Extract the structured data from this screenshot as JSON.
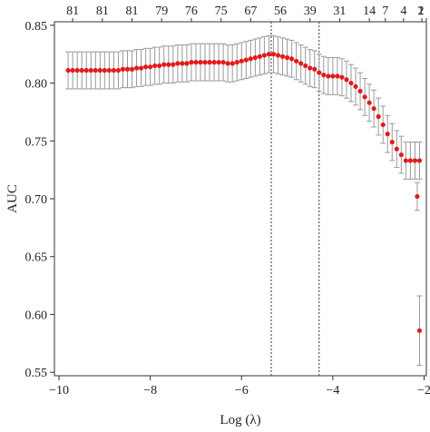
{
  "chart_data": {
    "type": "scatter",
    "xlabel": "Log (λ)",
    "ylabel": "AUC",
    "xlim": [
      -10.1,
      -1.95
    ],
    "ylim": [
      0.547,
      0.853
    ],
    "x_ticks": [
      -10,
      -8,
      -6,
      -4,
      -2
    ],
    "x_tick_labels": [
      "−10",
      "−8",
      "−6",
      "−4",
      "−2"
    ],
    "y_ticks": [
      0.55,
      0.6,
      0.65,
      0.7,
      0.75,
      0.8,
      0.85
    ],
    "y_tick_labels": [
      "0.55",
      "0.60",
      "0.65",
      "0.70",
      "0.75",
      "0.80",
      "0.85"
    ],
    "top_axis": [
      {
        "x": -9.7,
        "label": "81"
      },
      {
        "x": -9.05,
        "label": "81"
      },
      {
        "x": -8.4,
        "label": "81"
      },
      {
        "x": -7.75,
        "label": "79"
      },
      {
        "x": -7.1,
        "label": "76"
      },
      {
        "x": -6.45,
        "label": "75"
      },
      {
        "x": -5.8,
        "label": "67"
      },
      {
        "x": -5.15,
        "label": "56"
      },
      {
        "x": -4.5,
        "label": "39"
      },
      {
        "x": -3.85,
        "label": "31"
      },
      {
        "x": -3.2,
        "label": "14"
      },
      {
        "x": -2.85,
        "label": "7"
      },
      {
        "x": -2.45,
        "label": "4"
      },
      {
        "x": -2.05,
        "label": "2"
      },
      {
        "x": -1.95,
        "label": "1"
      }
    ],
    "vlines": [
      -5.35,
      -4.3
    ],
    "series": [
      {
        "x": [
          -9.8,
          -9.7,
          -9.6,
          -9.5,
          -9.4,
          -9.3,
          -9.2,
          -9.1,
          -9.0,
          -8.9,
          -8.8,
          -8.7,
          -8.6,
          -8.5,
          -8.4,
          -8.3,
          -8.2,
          -8.1,
          -8.0,
          -7.9,
          -7.8,
          -7.7,
          -7.6,
          -7.5,
          -7.4,
          -7.3,
          -7.2,
          -7.1,
          -7.0,
          -6.9,
          -6.8,
          -6.7,
          -6.6,
          -6.5,
          -6.4,
          -6.3,
          -6.2,
          -6.1,
          -6.0,
          -5.9,
          -5.8,
          -5.7,
          -5.6,
          -5.5,
          -5.4,
          -5.3,
          -5.2,
          -5.1,
          -5.0,
          -4.9,
          -4.8,
          -4.7,
          -4.6,
          -4.5,
          -4.4,
          -4.3,
          -4.2,
          -4.1,
          -4.0,
          -3.9,
          -3.8,
          -3.7,
          -3.6,
          -3.5,
          -3.4,
          -3.3,
          -3.2,
          -3.1,
          -3.0,
          -2.9,
          -2.8,
          -2.7,
          -2.6,
          -2.5,
          -2.4,
          -2.3,
          -2.2,
          -2.1
        ],
        "y": [
          0.811,
          0.811,
          0.811,
          0.811,
          0.811,
          0.811,
          0.811,
          0.811,
          0.811,
          0.811,
          0.811,
          0.811,
          0.812,
          0.812,
          0.812,
          0.813,
          0.813,
          0.814,
          0.814,
          0.815,
          0.815,
          0.816,
          0.816,
          0.816,
          0.817,
          0.817,
          0.817,
          0.818,
          0.818,
          0.818,
          0.818,
          0.818,
          0.818,
          0.818,
          0.818,
          0.817,
          0.817,
          0.818,
          0.819,
          0.82,
          0.821,
          0.822,
          0.823,
          0.824,
          0.825,
          0.825,
          0.824,
          0.823,
          0.822,
          0.821,
          0.819,
          0.817,
          0.815,
          0.813,
          0.812,
          0.809,
          0.807,
          0.806,
          0.806,
          0.806,
          0.805,
          0.803,
          0.8,
          0.797,
          0.793,
          0.788,
          0.783,
          0.778,
          0.771,
          0.764,
          0.756,
          0.749,
          0.743,
          0.738,
          0.733,
          0.733,
          0.733,
          0.733
        ],
        "err": [
          0.016,
          0.016,
          0.016,
          0.016,
          0.016,
          0.016,
          0.016,
          0.016,
          0.016,
          0.016,
          0.016,
          0.016,
          0.016,
          0.016,
          0.016,
          0.016,
          0.016,
          0.016,
          0.016,
          0.016,
          0.016,
          0.016,
          0.016,
          0.016,
          0.016,
          0.016,
          0.016,
          0.016,
          0.016,
          0.016,
          0.016,
          0.016,
          0.016,
          0.016,
          0.016,
          0.016,
          0.016,
          0.016,
          0.016,
          0.016,
          0.016,
          0.016,
          0.016,
          0.016,
          0.016,
          0.016,
          0.016,
          0.016,
          0.016,
          0.016,
          0.016,
          0.016,
          0.016,
          0.016,
          0.016,
          0.016,
          0.016,
          0.016,
          0.016,
          0.016,
          0.016,
          0.016,
          0.016,
          0.016,
          0.016,
          0.016,
          0.016,
          0.016,
          0.016,
          0.016,
          0.016,
          0.016,
          0.016,
          0.016,
          0.016,
          0.016,
          0.016,
          0.016
        ]
      },
      {
        "x": [
          -2.15,
          -2.1
        ],
        "y": [
          0.702,
          0.586
        ],
        "err": [
          0.012,
          0.03
        ]
      }
    ],
    "point_color": "#e31a1c",
    "errorbar_color": "#9a9a9a"
  }
}
